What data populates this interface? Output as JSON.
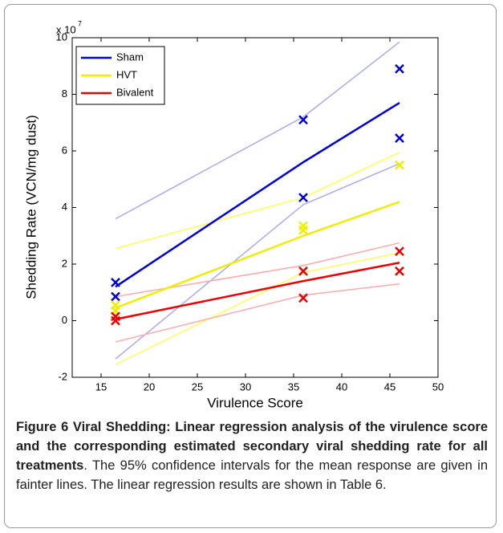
{
  "chart_data": {
    "type": "line",
    "y_multiplier_base": "x 10",
    "y_multiplier_exp": "7",
    "xlabel": "Virulence Score",
    "ylabel": "Shedding Rate (VCN/mg dust)",
    "xlim": [
      12,
      50
    ],
    "xticks": [
      15,
      20,
      25,
      30,
      35,
      40,
      45,
      50
    ],
    "ylim": [
      -2,
      10
    ],
    "yticks": [
      -2,
      0,
      2,
      4,
      6,
      8,
      10
    ],
    "legend": "upper left",
    "series": [
      {
        "name": "Sham",
        "color": "#0000dd",
        "ci_color": "#aaaaee",
        "x": [
          16.5,
          36,
          46
        ],
        "values": [
          1.2,
          5.6,
          7.7
        ],
        "upper": [
          3.6,
          7.2,
          9.85
        ],
        "lower": [
          -1.35,
          4.1,
          5.55
        ],
        "points": {
          "x": [
            16.5,
            16.5,
            36,
            36,
            46,
            46
          ],
          "values": [
            1.35,
            0.85,
            7.1,
            4.35,
            8.9,
            6.45
          ]
        }
      },
      {
        "name": "HVT",
        "color": "#eeee00",
        "ci_color": "#ffff55",
        "x": [
          16.5,
          36,
          46
        ],
        "values": [
          0.45,
          3.0,
          4.2
        ],
        "upper": [
          2.55,
          4.35,
          5.95
        ],
        "lower": [
          -1.55,
          1.7,
          2.4
        ],
        "points": {
          "x": [
            16.5,
            16.5,
            36,
            36,
            46
          ],
          "values": [
            0.55,
            0.35,
            3.35,
            3.2,
            5.5
          ]
        }
      },
      {
        "name": "Bivalent",
        "color": "#ee0000",
        "ci_color": "#ffaaaa",
        "x": [
          16.5,
          36,
          46
        ],
        "values": [
          0.05,
          1.4,
          2.05
        ],
        "upper": [
          0.85,
          1.95,
          2.75
        ],
        "lower": [
          -0.75,
          0.9,
          1.3
        ],
        "points": {
          "x": [
            16.5,
            16.5,
            36,
            36,
            46,
            46
          ],
          "values": [
            0.15,
            0.0,
            1.75,
            0.8,
            2.45,
            1.75
          ]
        }
      }
    ]
  },
  "caption": {
    "bold": "Figure 6 Viral Shedding: Linear regression analysis of the virulence score and the corresponding estimated secondary viral shedding rate for all treatments",
    "text": ". The 95% confidence intervals for the mean response are given in fainter lines. The linear regression results are shown in Table 6."
  }
}
